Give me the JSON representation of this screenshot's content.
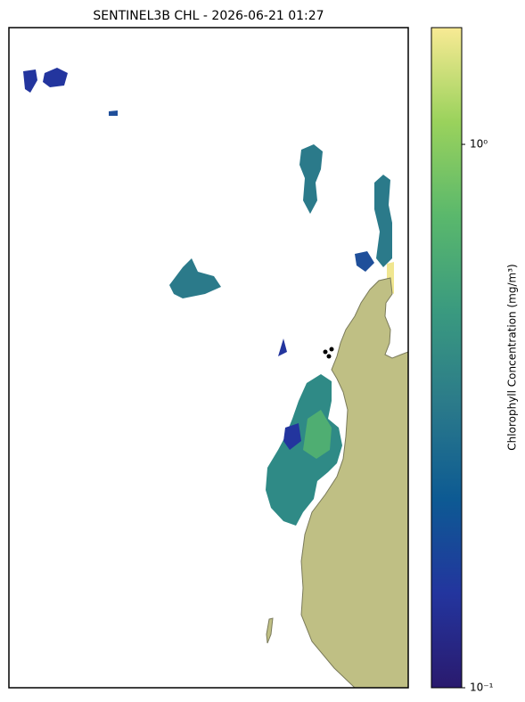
{
  "chart_data": {
    "type": "map",
    "title": "SENTINEL3B CHL - 2026-06-21 01:27",
    "colorbar": {
      "label": "Chlorophyll Concentration (mg/m³)",
      "scale": "log",
      "lim": [
        0.1,
        1.64
      ],
      "ticks": [
        {
          "value": 0.1,
          "label": "10⁻¹"
        },
        {
          "value": 1,
          "label": "10⁰"
        }
      ],
      "colors": [
        "#2a1a6e",
        "#23359e",
        "#0d5a93",
        "#2b7a8a",
        "#3a9a7f",
        "#5ab86c",
        "#9ad25c",
        "#f8ea94"
      ]
    }
  }
}
